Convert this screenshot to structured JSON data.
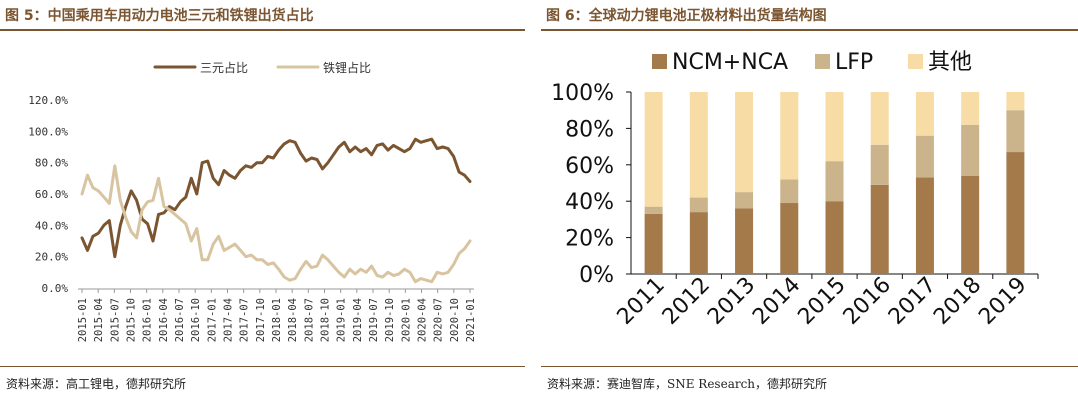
{
  "left_chart": {
    "figure_title": "图 5：中国乘用车用动力电池三元和铁锂出货占比",
    "source": "资料来源：高工锂电，德邦研究所"
  },
  "right_chart": {
    "figure_title": "图 6：全球动力锂电池正极材料出货量结构图",
    "source": "资料来源：赛迪智库，SNE Research，德邦研究所"
  },
  "colors": {
    "ternary": "#7a5530",
    "lfp": "#d8c4a0",
    "ncm": "#a47a4b",
    "lfp_bar": "#cbb48b",
    "other": "#f7dca6",
    "title": "#7a5530"
  },
  "chart_data": [
    {
      "type": "line",
      "title": "图 5：中国乘用车用动力电池三元和铁锂出货占比",
      "xlabel": "",
      "ylabel": "",
      "ylim": [
        0,
        120
      ],
      "yticks": [
        "0.0%",
        "20.0%",
        "40.0%",
        "60.0%",
        "80.0%",
        "100.0%",
        "120.0%"
      ],
      "x_tick_labels": [
        "2015-01",
        "2015-04",
        "2015-07",
        "2015-10",
        "2016-01",
        "2016-04",
        "2016-07",
        "2016-10",
        "2017-01",
        "2017-04",
        "2017-07",
        "2017-10",
        "2018-01",
        "2018-04",
        "2018-07",
        "2018-10",
        "2019-01",
        "2019-04",
        "2019-07",
        "2019-10",
        "2020-01",
        "2020-04",
        "2020-07",
        "2020-10",
        "2021-01"
      ],
      "grid": false,
      "legend_position": "top-right",
      "series": [
        {
          "name": "三元占比",
          "values": [
            32,
            24,
            33,
            35,
            40,
            43,
            20,
            40,
            52,
            62,
            56,
            44,
            41,
            30,
            47,
            48,
            52,
            50,
            55,
            58,
            70,
            60,
            80,
            81,
            70,
            66,
            75,
            72,
            70,
            75,
            78,
            77,
            80,
            80,
            84,
            83,
            88,
            92,
            94,
            93,
            86,
            81,
            83,
            82,
            76,
            80,
            85,
            90,
            93,
            87,
            90,
            87,
            89,
            85,
            91,
            92,
            88,
            91,
            89,
            87,
            89,
            95,
            93,
            94,
            95,
            89,
            90,
            89,
            84,
            74,
            72,
            68
          ]
        },
        {
          "name": "铁锂占比",
          "values": [
            60,
            72,
            64,
            62,
            58,
            54,
            78,
            56,
            45,
            36,
            32,
            50,
            55,
            56,
            70,
            52,
            50,
            47,
            44,
            41,
            30,
            38,
            18,
            18,
            28,
            33,
            24,
            26,
            28,
            24,
            20,
            21,
            18,
            18,
            15,
            16,
            12,
            7,
            5,
            6,
            12,
            17,
            13,
            14,
            21,
            18,
            14,
            10,
            7,
            12,
            9,
            12,
            10,
            14,
            8,
            7,
            10,
            8,
            9,
            12,
            10,
            4,
            6,
            5,
            4,
            10,
            9,
            10,
            15,
            22,
            25,
            30
          ]
        }
      ]
    },
    {
      "type": "bar",
      "stacked": true,
      "title": "图 6：全球动力锂电池正极材料出货量结构图",
      "xlabel": "",
      "ylabel": "",
      "ylim": [
        0,
        100
      ],
      "yticks": [
        "0%",
        "20%",
        "40%",
        "60%",
        "80%",
        "100%"
      ],
      "categories": [
        "2011",
        "2012",
        "2013",
        "2014",
        "2015",
        "2016",
        "2017",
        "2018",
        "2019"
      ],
      "legend_position": "top",
      "series": [
        {
          "name": "NCM+NCA",
          "values": [
            33,
            34,
            36,
            39,
            40,
            49,
            53,
            54,
            67
          ]
        },
        {
          "name": "LFP",
          "values": [
            4,
            8,
            9,
            13,
            22,
            22,
            23,
            28,
            23
          ]
        },
        {
          "name": "其他",
          "values": [
            63,
            58,
            55,
            48,
            38,
            29,
            24,
            18,
            10
          ]
        }
      ]
    }
  ]
}
